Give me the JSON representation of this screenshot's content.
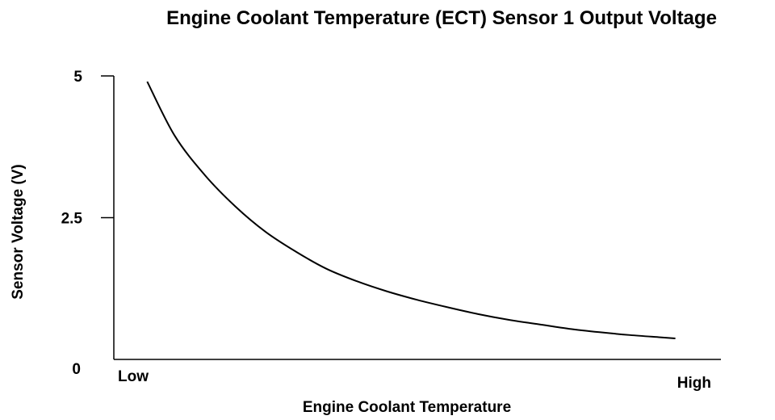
{
  "chart_data": {
    "type": "line",
    "title": "Engine Coolant Temperature (ECT) Sensor 1 Output Voltage",
    "xlabel": "Engine Coolant Temperature",
    "ylabel": "Sensor Voltage (V)",
    "x_tick_labels": [
      "Low",
      "High"
    ],
    "y_ticks": [
      {
        "value": 0,
        "label": "0"
      },
      {
        "value": 2.5,
        "label": "2.5"
      },
      {
        "value": 5,
        "label": "5"
      }
    ],
    "ylim": [
      0,
      5
    ],
    "xlim": [
      0,
      1
    ],
    "grid": false,
    "series": [
      {
        "x": [
          0.055,
          0.1,
          0.15,
          0.2,
          0.25,
          0.3,
          0.35,
          0.4,
          0.45,
          0.5,
          0.55,
          0.6,
          0.65,
          0.7,
          0.75,
          0.8,
          0.85,
          0.9,
          0.925
        ],
        "values": [
          4.9,
          3.95,
          3.25,
          2.7,
          2.25,
          1.9,
          1.6,
          1.38,
          1.2,
          1.05,
          0.92,
          0.8,
          0.7,
          0.62,
          0.54,
          0.48,
          0.43,
          0.39,
          0.37
        ]
      }
    ],
    "colors": {
      "line": "#000000",
      "axis": "#000000",
      "background": "#ffffff"
    }
  }
}
